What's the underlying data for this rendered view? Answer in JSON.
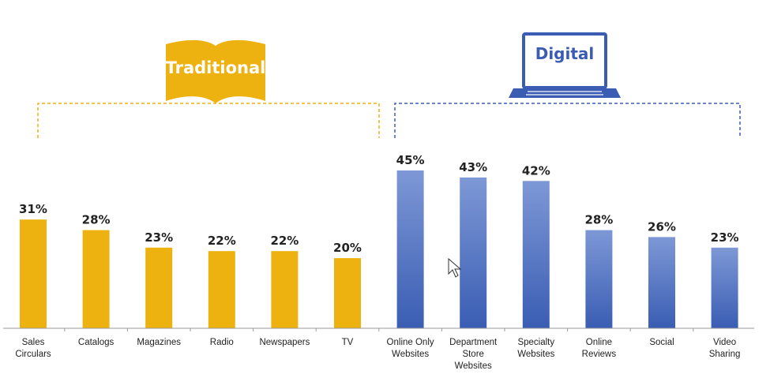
{
  "chart_data": {
    "type": "bar",
    "title": "",
    "xlabel": "",
    "ylabel": "",
    "ylim": [
      0,
      50
    ],
    "grid": false,
    "groups": [
      {
        "name": "Traditional",
        "icon": "open-book-icon",
        "color": "#EDB20F",
        "categories": [
          [
            "Sales",
            "Circulars"
          ],
          [
            "Catalogs"
          ],
          [
            "Magazines"
          ],
          [
            "Radio"
          ],
          [
            "Newspapers"
          ],
          [
            "TV"
          ]
        ],
        "values": [
          31,
          28,
          23,
          22,
          22,
          20
        ],
        "labels": [
          "31%",
          "28%",
          "23%",
          "22%",
          "22%",
          "20%"
        ]
      },
      {
        "name": "Digital",
        "icon": "laptop-icon",
        "color": "#3A5DB3",
        "color_light": "#7E98D6",
        "categories": [
          [
            "Online Only",
            "Websites"
          ],
          [
            "Department",
            "Store",
            "Websites"
          ],
          [
            "Specialty",
            "Websites"
          ],
          [
            "Online",
            "Reviews"
          ],
          [
            "Social"
          ],
          [
            "Video",
            "Sharing"
          ]
        ],
        "values": [
          45,
          43,
          42,
          28,
          26,
          23
        ],
        "labels": [
          "45%",
          "43%",
          "42%",
          "28%",
          "26%",
          "23%"
        ]
      }
    ]
  }
}
